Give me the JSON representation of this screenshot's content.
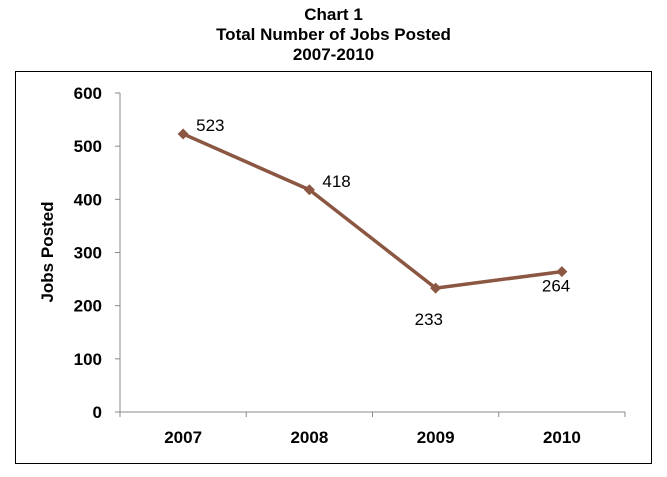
{
  "chart_data": {
    "type": "line",
    "title_lines": [
      "Chart 1",
      "Total Number of Jobs Posted",
      "2007-2010"
    ],
    "categories": [
      "2007",
      "2008",
      "2009",
      "2010"
    ],
    "series": [
      {
        "values": [
          523,
          418,
          233,
          264
        ],
        "color": "#8B5742"
      }
    ],
    "data_labels": [
      "523",
      "418",
      "233",
      "264"
    ],
    "xlabel": "",
    "ylabel": "Jobs Posted",
    "ylim": [
      0,
      600
    ],
    "yticks": [
      0,
      100,
      200,
      300,
      400,
      500,
      600
    ],
    "grid": false,
    "legend": "none",
    "marker": "diamond"
  }
}
